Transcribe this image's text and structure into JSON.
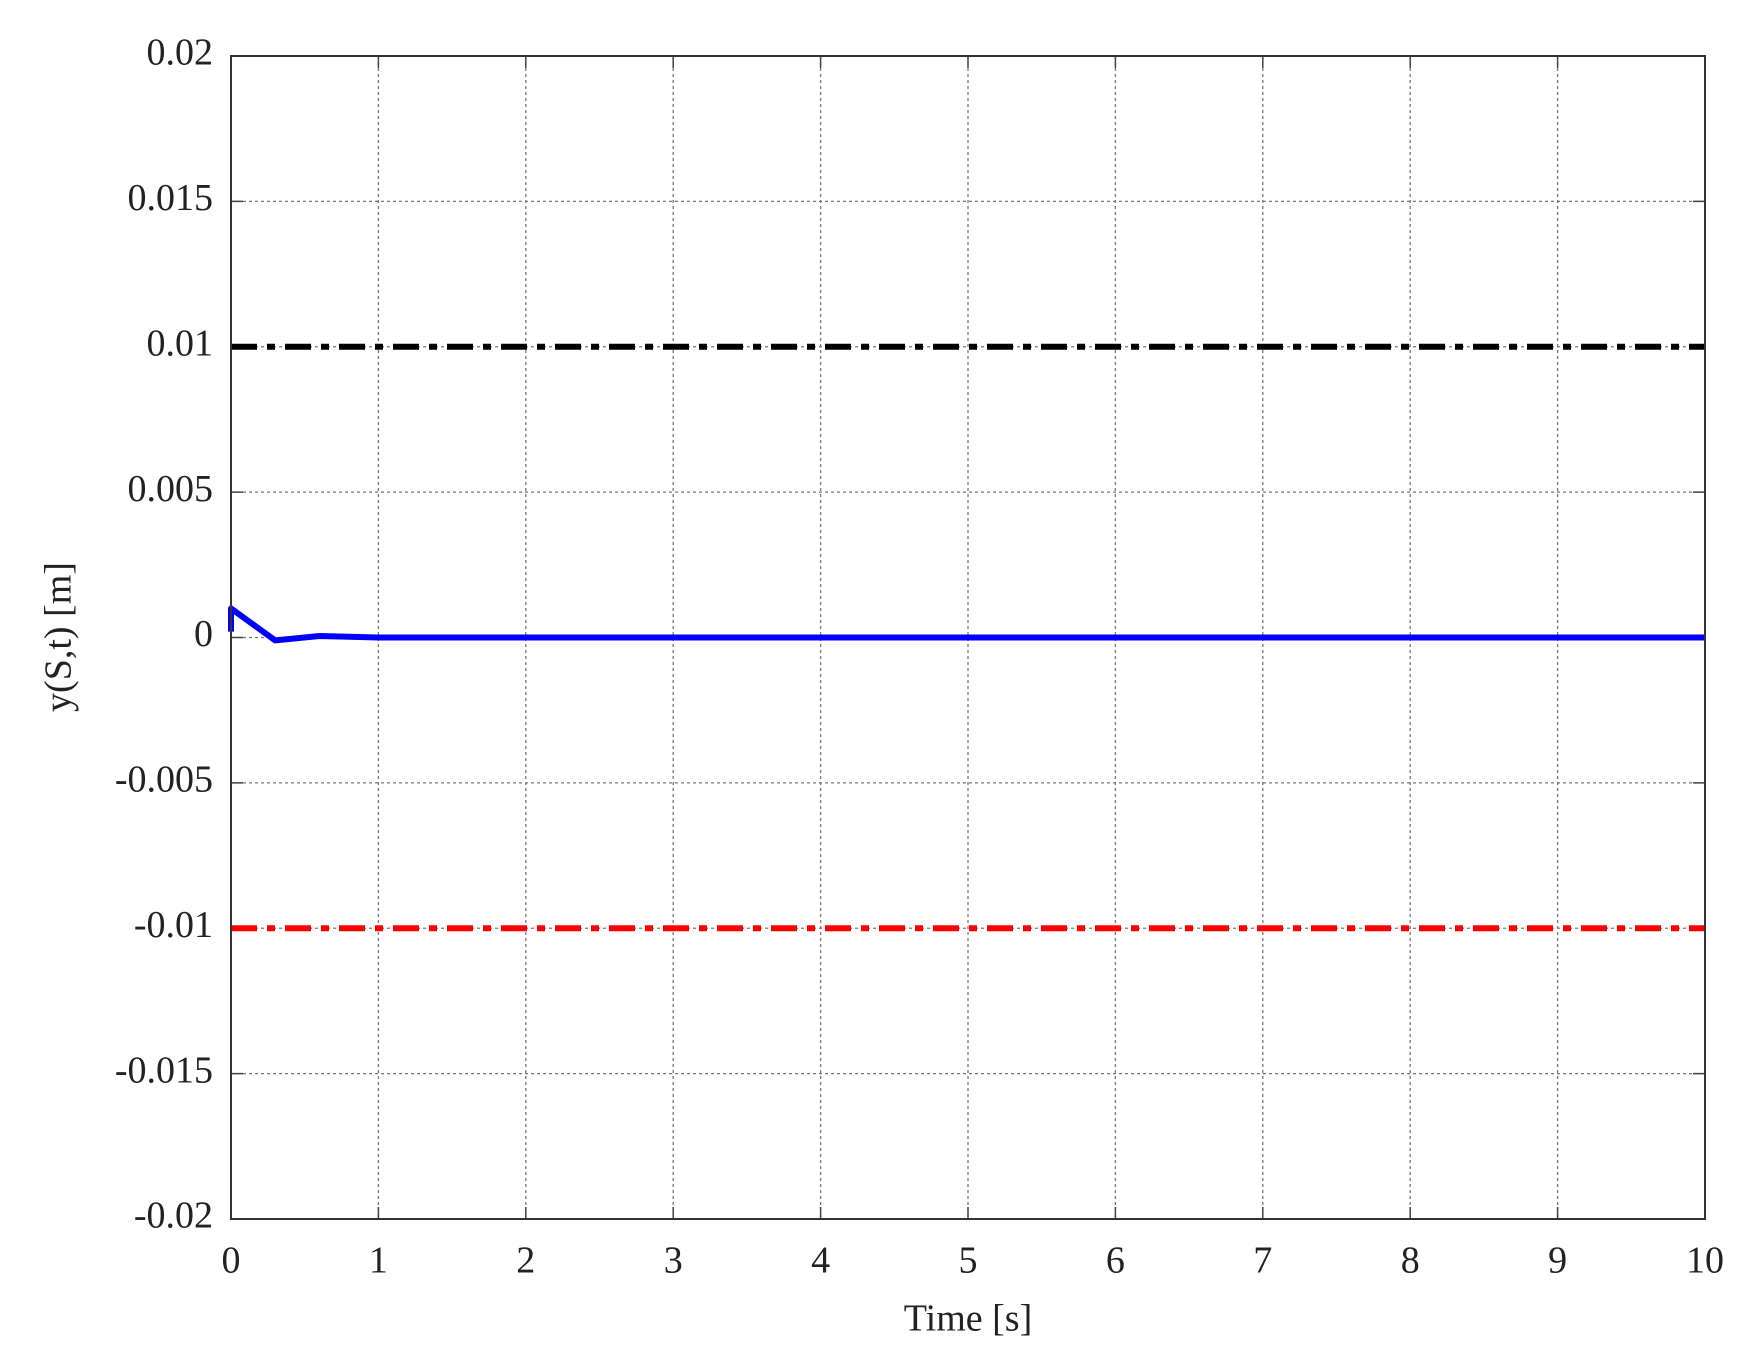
{
  "chart_data": {
    "type": "line",
    "xlabel": "Time [s]",
    "ylabel": "y(S,t) [m]",
    "xlim": [
      0,
      10
    ],
    "ylim": [
      -0.02,
      0.02
    ],
    "xticks": [
      0,
      1,
      2,
      3,
      4,
      5,
      6,
      7,
      8,
      9,
      10
    ],
    "yticks": [
      -0.02,
      -0.015,
      -0.01,
      -0.005,
      0,
      0.005,
      0.01,
      0.015,
      0.02
    ],
    "grid": true,
    "series": [
      {
        "color": "#0000ff",
        "style": "solid",
        "x": [
          0,
          0,
          0.3,
          0.6,
          1,
          10
        ],
        "values": [
          0.0002,
          0.001,
          -0.0001,
          5e-05,
          0,
          0
        ]
      },
      {
        "color": "#000000",
        "style": "dashdot",
        "x": [
          0,
          10
        ],
        "values": [
          0.01,
          0.01
        ]
      },
      {
        "color": "#ff0000",
        "style": "dashdot",
        "x": [
          0,
          10
        ],
        "values": [
          -0.01,
          -0.01
        ]
      }
    ]
  }
}
